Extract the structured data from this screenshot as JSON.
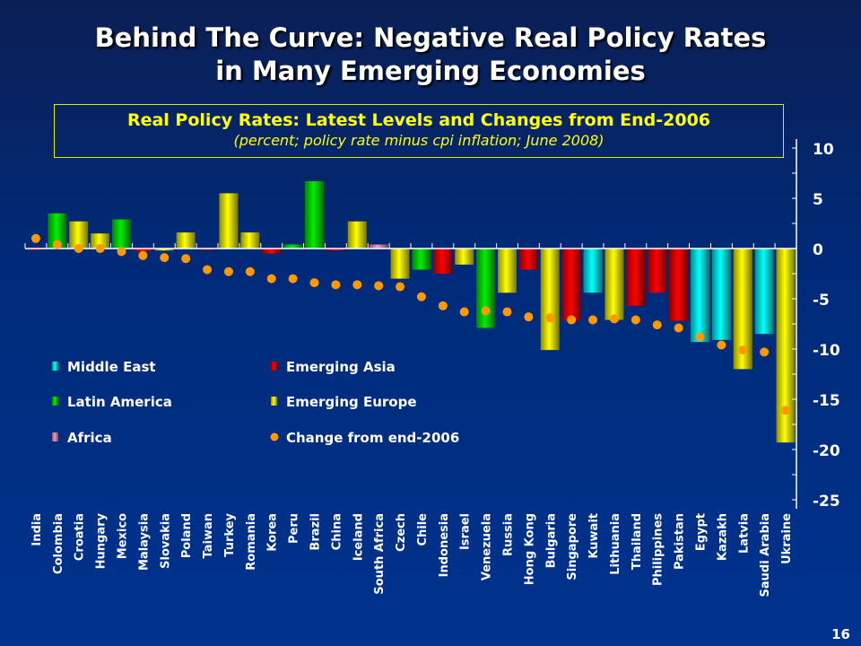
{
  "slide": {
    "title_line1": "Behind The Curve: Negative Real Policy Rates",
    "title_line2": "in Many Emerging Economies",
    "page_number": "16"
  },
  "chart_data": {
    "type": "bar",
    "title": "Real Policy Rates: Latest Levels and Changes from End-2006",
    "subtitle": "(percent; policy rate minus cpi inflation; June 2008)",
    "ylim": [
      -25,
      10
    ],
    "yticks": [
      10,
      5,
      0,
      -5,
      -10,
      -15,
      -20,
      -25
    ],
    "y_axis_position": "right",
    "grid": false,
    "legend_placement": "left-middle",
    "colors": {
      "Middle East": "#00ffff",
      "Emerging Asia": "#ff0000",
      "Latin America": "#00ee00",
      "Emerging Europe": "#ffff00",
      "Africa": "#ee99cc",
      "Change from end-2006": "#ff9900"
    },
    "legend": [
      "Middle East",
      "Emerging Asia",
      "Latin America",
      "Emerging Europe",
      "Africa",
      "Change from end-2006"
    ],
    "categories": [
      "India",
      "Colombia",
      "Croatia",
      "Hungary",
      "Mexico",
      "Malaysia",
      "Slovakia",
      "Poland",
      "Taiwan",
      "Turkey",
      "Romania",
      "Korea",
      "Peru",
      "Brazil",
      "China",
      "Iceland",
      "South Africa",
      "Czech",
      "Chile",
      "Indonesia",
      "Israel",
      "Venezuela",
      "Russia",
      "Hong Kong",
      "Bulgaria",
      "Singapore",
      "Kuwait",
      "Lithuania",
      "Thailand",
      "Philippines",
      "Pakistan",
      "Egypt",
      "Kazakh",
      "Latvia",
      "Saudi Arabia",
      "Ukraine"
    ],
    "regions": [
      "Emerging Asia",
      "Latin America",
      "Emerging Europe",
      "Emerging Europe",
      "Latin America",
      "Emerging Asia",
      "Emerging Europe",
      "Emerging Europe",
      "Emerging Asia",
      "Emerging Europe",
      "Emerging Europe",
      "Emerging Asia",
      "Latin America",
      "Latin America",
      "Emerging Asia",
      "Emerging Europe",
      "Africa",
      "Emerging Europe",
      "Latin America",
      "Emerging Asia",
      "Emerging Europe",
      "Latin America",
      "Emerging Europe",
      "Emerging Asia",
      "Emerging Europe",
      "Emerging Asia",
      "Middle East",
      "Emerging Europe",
      "Emerging Asia",
      "Emerging Asia",
      "Emerging Asia",
      "Middle East",
      "Middle East",
      "Emerging Europe",
      "Middle East",
      "Emerging Europe"
    ],
    "series": [
      {
        "name": "Real policy rate",
        "type": "bar",
        "values": [
          0.0,
          3.5,
          2.7,
          1.5,
          2.9,
          -0.3,
          -0.2,
          1.6,
          -0.1,
          5.5,
          1.6,
          -0.5,
          0.4,
          6.7,
          -0.2,
          2.7,
          0.4,
          -3.0,
          -2.1,
          -2.5,
          -1.6,
          -7.9,
          -4.4,
          -2.1,
          -10.1,
          -7.2,
          -4.4,
          -7.1,
          -5.7,
          -4.4,
          -7.2,
          -9.3,
          -9.1,
          -12.0,
          -8.5,
          -19.3
        ]
      },
      {
        "name": "Change from end-2006",
        "type": "scatter",
        "values": [
          1.0,
          0.4,
          0.0,
          0.0,
          -0.3,
          -0.7,
          -0.9,
          -1.0,
          -2.1,
          -2.3,
          -2.3,
          -3.0,
          -3.0,
          -3.4,
          -3.6,
          -3.6,
          -3.7,
          -3.8,
          -4.8,
          -5.7,
          -6.3,
          -6.2,
          -6.3,
          -6.8,
          -6.9,
          -7.1,
          -7.1,
          -7.0,
          -7.1,
          -7.6,
          -7.9,
          -8.8,
          -9.6,
          -10.1,
          -10.3,
          -16.1
        ]
      }
    ]
  }
}
